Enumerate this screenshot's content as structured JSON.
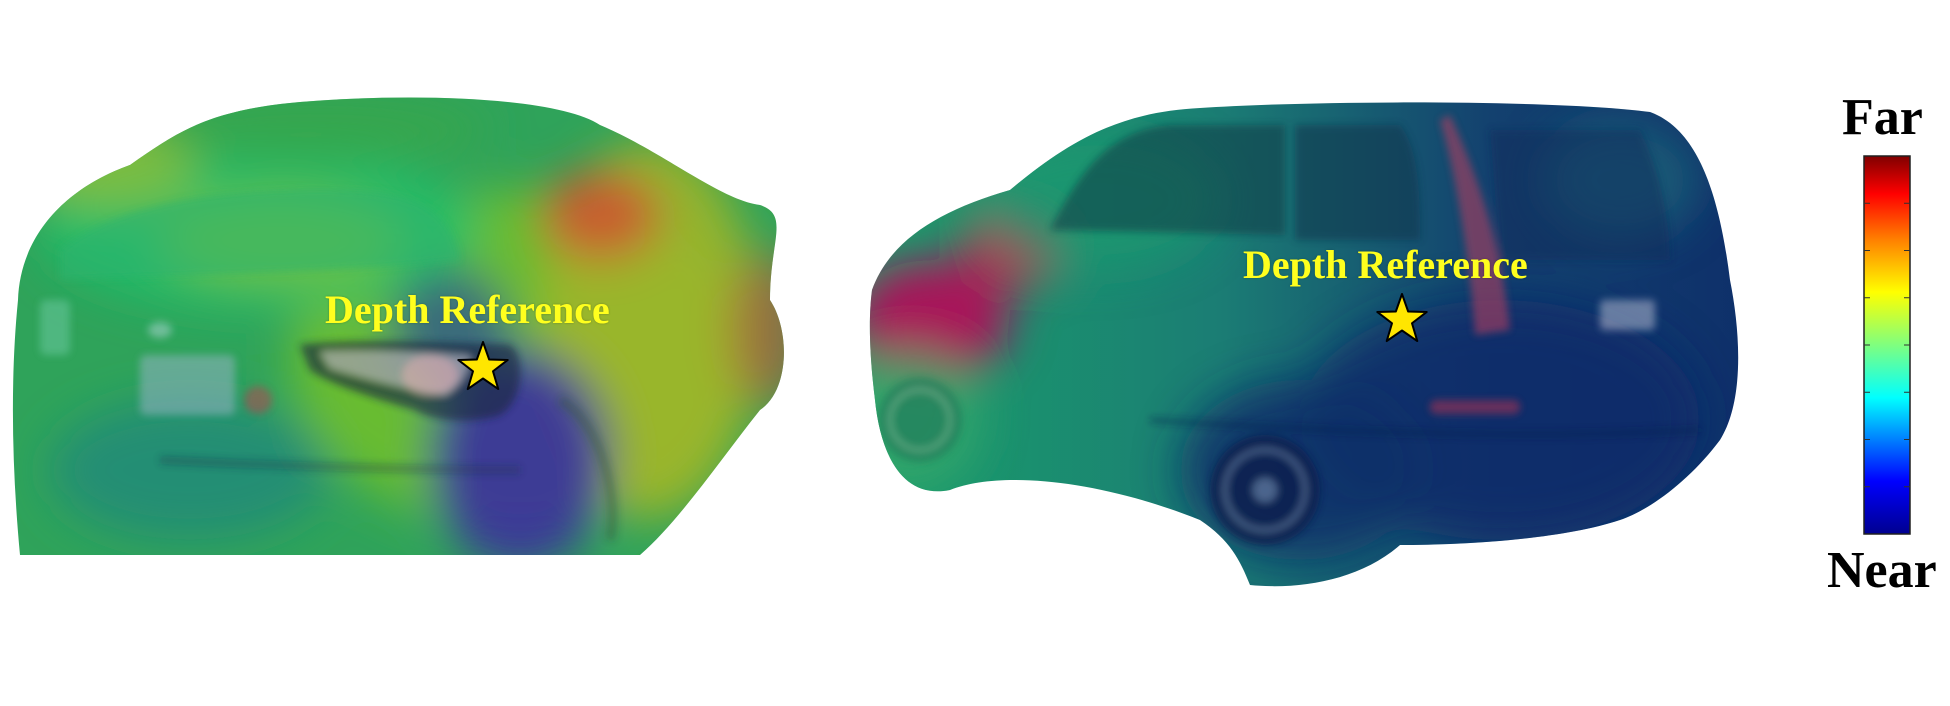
{
  "figure": {
    "panels": [
      {
        "id": "left-car",
        "subject": "hatchback-rear-view",
        "reference_label": "Depth Reference",
        "reference_marker": "star-icon"
      },
      {
        "id": "right-car",
        "subject": "suv-side-view",
        "reference_label": "Depth Reference",
        "reference_marker": "star-icon"
      }
    ],
    "colorbar": {
      "top_label": "Far",
      "bottom_label": "Near",
      "colormap": "jet",
      "stops": [
        "#00008f",
        "#0000ff",
        "#00ffff",
        "#7fff7f",
        "#ffff00",
        "#ff7f00",
        "#ff0000",
        "#800000"
      ]
    },
    "colors": {
      "label": "#ffff1e",
      "star_fill": "#ffe600",
      "star_stroke": "#000000"
    }
  }
}
